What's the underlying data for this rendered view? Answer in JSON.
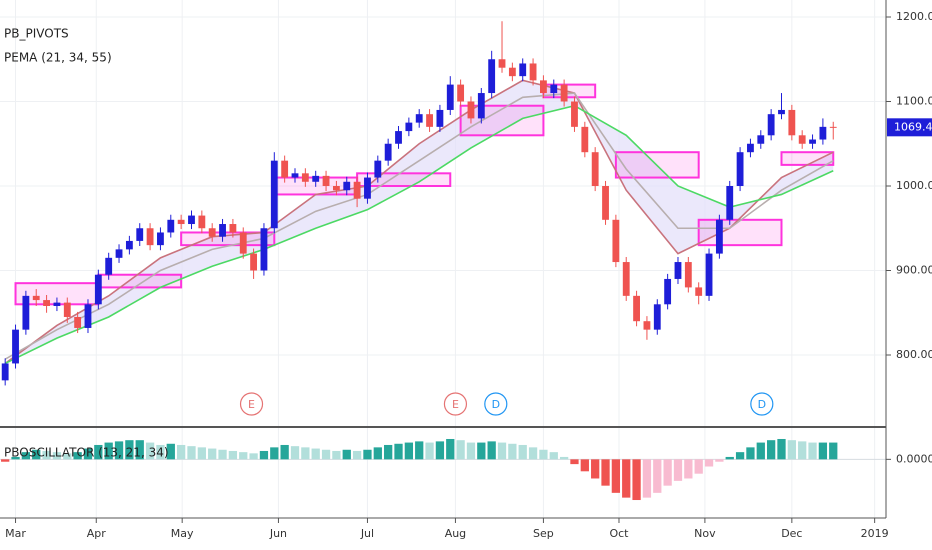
{
  "chart_data": [
    {
      "type": "candlestick",
      "legend": [
        "PB_PIVOTS",
        "PEMA (21, 34, 55)"
      ],
      "up_color": "#1e1ed8",
      "down_color": "#ef5350",
      "ohlc": [
        [
          770,
          796,
          764,
          790
        ],
        [
          790,
          836,
          784,
          830
        ],
        [
          830,
          876,
          824,
          870
        ],
        [
          870,
          878,
          858,
          865
        ],
        [
          865,
          871,
          850,
          858
        ],
        [
          858,
          868,
          852,
          862
        ],
        [
          862,
          868,
          838,
          845
        ],
        [
          845,
          851,
          826,
          832
        ],
        [
          832,
          866,
          826,
          860
        ],
        [
          860,
          901,
          854,
          895
        ],
        [
          895,
          921,
          889,
          915
        ],
        [
          915,
          931,
          909,
          925
        ],
        [
          925,
          941,
          919,
          935
        ],
        [
          935,
          956,
          929,
          950
        ],
        [
          950,
          956,
          924,
          930
        ],
        [
          930,
          951,
          924,
          945
        ],
        [
          945,
          966,
          939,
          960
        ],
        [
          960,
          966,
          949,
          955
        ],
        [
          955,
          971,
          949,
          965
        ],
        [
          965,
          971,
          944,
          950
        ],
        [
          950,
          956,
          934,
          940
        ],
        [
          940,
          961,
          934,
          955
        ],
        [
          955,
          961,
          939,
          945
        ],
        [
          945,
          951,
          914,
          920
        ],
        [
          920,
          926,
          890,
          900
        ],
        [
          900,
          956,
          894,
          950
        ],
        [
          950,
          1040,
          944,
          1030
        ],
        [
          1030,
          1036,
          1004,
          1010
        ],
        [
          1010,
          1021,
          1004,
          1015
        ],
        [
          1015,
          1021,
          999,
          1005
        ],
        [
          1005,
          1018,
          999,
          1012
        ],
        [
          1012,
          1018,
          994,
          1000
        ],
        [
          1000,
          1006,
          989,
          995
        ],
        [
          995,
          1011,
          989,
          1005
        ],
        [
          1005,
          1011,
          975,
          985
        ],
        [
          985,
          1016,
          979,
          1010
        ],
        [
          1010,
          1036,
          1004,
          1030
        ],
        [
          1030,
          1056,
          1024,
          1050
        ],
        [
          1050,
          1071,
          1044,
          1065
        ],
        [
          1065,
          1081,
          1059,
          1075
        ],
        [
          1075,
          1091,
          1069,
          1085
        ],
        [
          1085,
          1091,
          1064,
          1070
        ],
        [
          1070,
          1096,
          1064,
          1090
        ],
        [
          1090,
          1130,
          1084,
          1120
        ],
        [
          1120,
          1126,
          1094,
          1100
        ],
        [
          1100,
          1106,
          1074,
          1080
        ],
        [
          1080,
          1116,
          1074,
          1110
        ],
        [
          1110,
          1160,
          1104,
          1150
        ],
        [
          1150,
          1195,
          1134,
          1140
        ],
        [
          1140,
          1146,
          1124,
          1130
        ],
        [
          1130,
          1151,
          1124,
          1145
        ],
        [
          1145,
          1151,
          1119,
          1125
        ],
        [
          1125,
          1131,
          1104,
          1110
        ],
        [
          1110,
          1126,
          1104,
          1120
        ],
        [
          1120,
          1126,
          1094,
          1100
        ],
        [
          1100,
          1106,
          1064,
          1070
        ],
        [
          1070,
          1076,
          1034,
          1040
        ],
        [
          1040,
          1046,
          994,
          1000
        ],
        [
          1000,
          1006,
          954,
          960
        ],
        [
          960,
          966,
          904,
          910
        ],
        [
          910,
          916,
          864,
          870
        ],
        [
          870,
          876,
          834,
          840
        ],
        [
          840,
          846,
          818,
          830
        ],
        [
          830,
          866,
          824,
          860
        ],
        [
          860,
          896,
          854,
          890
        ],
        [
          890,
          916,
          884,
          910
        ],
        [
          910,
          916,
          874,
          880
        ],
        [
          880,
          886,
          860,
          870
        ],
        [
          870,
          926,
          864,
          920
        ],
        [
          920,
          966,
          914,
          960
        ],
        [
          960,
          1006,
          954,
          1000
        ],
        [
          1000,
          1046,
          994,
          1040
        ],
        [
          1040,
          1056,
          1034,
          1050
        ],
        [
          1050,
          1066,
          1044,
          1060
        ],
        [
          1060,
          1091,
          1054,
          1085
        ],
        [
          1085,
          1110,
          1079,
          1090
        ],
        [
          1090,
          1096,
          1054,
          1060
        ],
        [
          1060,
          1066,
          1044,
          1050
        ],
        [
          1050,
          1061,
          1044,
          1055
        ],
        [
          1055,
          1080,
          1049,
          1070
        ],
        [
          1070,
          1076,
          1055,
          1069.45
        ]
      ],
      "lines_x": [
        0,
        5,
        10,
        15,
        20,
        25,
        30,
        35,
        40,
        45,
        50,
        55,
        60,
        65,
        70,
        75,
        80
      ],
      "lines": [
        {
          "color": "#c9737d",
          "values": [
            790,
            835,
            870,
            915,
            940,
            945,
            990,
            1000,
            1050,
            1090,
            1125,
            1110,
            995,
            920,
            950,
            1010,
            1040
          ]
        },
        {
          "color": "#b8aeae",
          "values": [
            795,
            830,
            860,
            900,
            925,
            938,
            970,
            990,
            1030,
            1070,
            1105,
            1110,
            1020,
            950,
            950,
            995,
            1030
          ]
        },
        {
          "color": "#4cd964",
          "values": [
            790,
            820,
            845,
            880,
            905,
            925,
            950,
            972,
            1005,
            1045,
            1080,
            1095,
            1060,
            1000,
            975,
            990,
            1018
          ]
        }
      ],
      "fill_color": "#e3defa",
      "pivot_color": "#ff33dd",
      "pivots": [
        {
          "start": 1,
          "end": 9,
          "top": 885,
          "bottom": 860
        },
        {
          "start": 9,
          "end": 17,
          "top": 895,
          "bottom": 880
        },
        {
          "start": 17,
          "end": 26,
          "top": 945,
          "bottom": 930
        },
        {
          "start": 26,
          "end": 34,
          "top": 1010,
          "bottom": 990
        },
        {
          "start": 34,
          "end": 43,
          "top": 1015,
          "bottom": 1000
        },
        {
          "start": 44,
          "end": 52,
          "top": 1095,
          "bottom": 1060
        },
        {
          "start": 52,
          "end": 57,
          "top": 1120,
          "bottom": 1105
        },
        {
          "start": 59,
          "end": 67,
          "top": 1040,
          "bottom": 1010
        },
        {
          "start": 67,
          "end": 75,
          "top": 960,
          "bottom": 930
        },
        {
          "start": 75,
          "end": 80,
          "top": 1040,
          "bottom": 1025
        }
      ],
      "events": [
        {
          "x": 23.8,
          "label": "E",
          "color": "#e57373"
        },
        {
          "x": 43.5,
          "label": "E",
          "color": "#e57373"
        },
        {
          "x": 47.4,
          "label": "D",
          "color": "#2196f3"
        },
        {
          "x": 73.1,
          "label": "D",
          "color": "#2196f3"
        }
      ],
      "last_color": "#1e1ed8",
      "xlim": [
        -0.5,
        85
      ],
      "xticks": [
        {
          "value": 1,
          "label": "Mar"
        },
        {
          "value": 8.8,
          "label": "Apr"
        },
        {
          "value": 17.1,
          "label": "May"
        },
        {
          "value": 26.4,
          "label": "Jun"
        },
        {
          "value": 35,
          "label": "Jul"
        },
        {
          "value": 43.5,
          "label": "Aug"
        },
        {
          "value": 52,
          "label": "Sep"
        },
        {
          "value": 59.3,
          "label": "Oct"
        },
        {
          "value": 67.6,
          "label": "Nov"
        },
        {
          "value": 76,
          "label": "Dec"
        },
        {
          "value": 84,
          "label": "2019"
        }
      ],
      "ylim": [
        740,
        1200
      ],
      "yticks": [
        {
          "value": 800,
          "label": "800.00"
        },
        {
          "value": 900,
          "label": "900.00"
        },
        {
          "value": 1000,
          "label": "1000.00"
        },
        {
          "value": 1100,
          "label": "1100.00"
        },
        {
          "value": 1200,
          "label": "1200.00"
        }
      ],
      "grid": true
    },
    {
      "type": "bar",
      "legend": "PBOSCILLATOR (13, 21, 34)",
      "colors": {
        "up": "#26a69a",
        "up_fade": "#b2dfdb",
        "down": "#ef5350",
        "down_fade": "#f8bbd0"
      },
      "values": [
        -0.1,
        0.1,
        0.3,
        0.4,
        0.35,
        0.3,
        0.25,
        0.3,
        0.45,
        0.6,
        0.7,
        0.75,
        0.8,
        0.8,
        0.7,
        0.6,
        0.65,
        0.6,
        0.55,
        0.5,
        0.45,
        0.4,
        0.35,
        0.3,
        0.25,
        0.35,
        0.5,
        0.6,
        0.55,
        0.5,
        0.45,
        0.4,
        0.35,
        0.4,
        0.35,
        0.4,
        0.5,
        0.6,
        0.65,
        0.7,
        0.75,
        0.7,
        0.75,
        0.85,
        0.8,
        0.7,
        0.7,
        0.75,
        0.7,
        0.65,
        0.6,
        0.5,
        0.4,
        0.3,
        0.1,
        -0.2,
        -0.5,
        -0.8,
        -1.1,
        -1.4,
        -1.6,
        -1.7,
        -1.6,
        -1.4,
        -1.1,
        -0.9,
        -0.8,
        -0.6,
        -0.3,
        -0.1,
        0.1,
        0.3,
        0.5,
        0.7,
        0.8,
        0.85,
        0.8,
        0.75,
        0.7,
        0.7,
        0.7
      ],
      "ylim": [
        -2.2,
        1.1
      ],
      "yticks": [
        {
          "value": 0,
          "label": "0.0000"
        }
      ]
    }
  ]
}
